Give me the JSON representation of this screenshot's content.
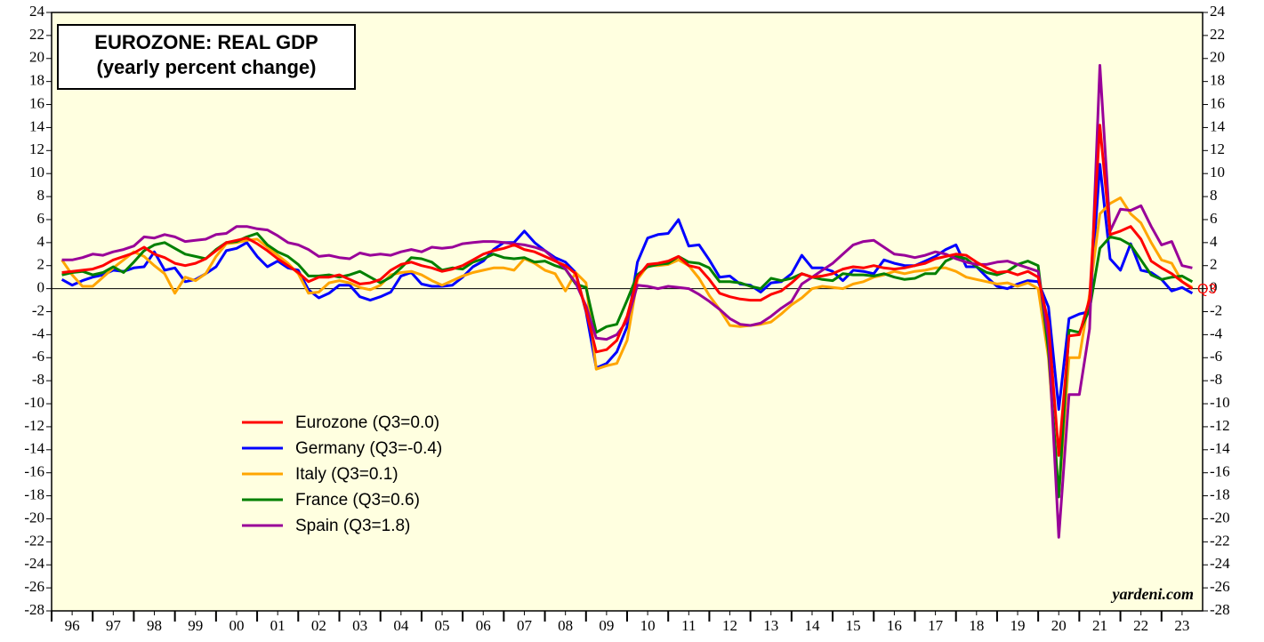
{
  "chart_data": {
    "type": "line",
    "title": "EUROZONE: REAL GDP",
    "subtitle": "(yearly percent change)",
    "annotations": [
      "Q3",
      "yardeni.com"
    ],
    "xlim": [
      1996,
      2024
    ],
    "xticks": [
      {
        "value": 1996.5,
        "label": "96"
      },
      {
        "value": 1997.5,
        "label": "97"
      },
      {
        "value": 1998.5,
        "label": "98"
      },
      {
        "value": 1999.5,
        "label": "99"
      },
      {
        "value": 2000.5,
        "label": "00"
      },
      {
        "value": 2001.5,
        "label": "01"
      },
      {
        "value": 2002.5,
        "label": "02"
      },
      {
        "value": 2003.5,
        "label": "03"
      },
      {
        "value": 2004.5,
        "label": "04"
      },
      {
        "value": 2005.5,
        "label": "05"
      },
      {
        "value": 2006.5,
        "label": "06"
      },
      {
        "value": 2007.5,
        "label": "07"
      },
      {
        "value": 2008.5,
        "label": "08"
      },
      {
        "value": 2009.5,
        "label": "09"
      },
      {
        "value": 2010.5,
        "label": "10"
      },
      {
        "value": 2011.5,
        "label": "11"
      },
      {
        "value": 2012.5,
        "label": "12"
      },
      {
        "value": 2013.5,
        "label": "13"
      },
      {
        "value": 2014.5,
        "label": "14"
      },
      {
        "value": 2015.5,
        "label": "15"
      },
      {
        "value": 2016.5,
        "label": "16"
      },
      {
        "value": 2017.5,
        "label": "17"
      },
      {
        "value": 2018.5,
        "label": "18"
      },
      {
        "value": 2019.5,
        "label": "19"
      },
      {
        "value": 2020.5,
        "label": "20"
      },
      {
        "value": 2021.5,
        "label": "21"
      },
      {
        "value": 2022.5,
        "label": "22"
      },
      {
        "value": 2023.5,
        "label": "23"
      }
    ],
    "ylim": [
      -28,
      24
    ],
    "yticks": [
      -28,
      -26,
      -24,
      -22,
      -20,
      -18,
      -16,
      -14,
      -12,
      -10,
      -8,
      -6,
      -4,
      -2,
      0,
      2,
      4,
      6,
      8,
      10,
      12,
      14,
      16,
      18,
      20,
      22,
      24
    ],
    "x": [
      1996.25,
      1996.5,
      1996.75,
      1997,
      1997.25,
      1997.5,
      1997.75,
      1998,
      1998.25,
      1998.5,
      1998.75,
      1999,
      1999.25,
      1999.5,
      1999.75,
      2000,
      2000.25,
      2000.5,
      2000.75,
      2001,
      2001.25,
      2001.5,
      2001.75,
      2002,
      2002.25,
      2002.5,
      2002.75,
      2003,
      2003.25,
      2003.5,
      2003.75,
      2004,
      2004.25,
      2004.5,
      2004.75,
      2005,
      2005.25,
      2005.5,
      2005.75,
      2006,
      2006.25,
      2006.5,
      2006.75,
      2007,
      2007.25,
      2007.5,
      2007.75,
      2008,
      2008.25,
      2008.5,
      2008.75,
      2009,
      2009.25,
      2009.5,
      2009.75,
      2010,
      2010.25,
      2010.5,
      2010.75,
      2011,
      2011.25,
      2011.5,
      2011.75,
      2012,
      2012.25,
      2012.5,
      2012.75,
      2013,
      2013.25,
      2013.5,
      2013.75,
      2014,
      2014.25,
      2014.5,
      2014.75,
      2015,
      2015.25,
      2015.5,
      2015.75,
      2016,
      2016.25,
      2016.5,
      2016.75,
      2017,
      2017.25,
      2017.5,
      2017.75,
      2018,
      2018.25,
      2018.5,
      2018.75,
      2019,
      2019.25,
      2019.5,
      2019.75,
      2020,
      2020.25,
      2020.5,
      2020.75,
      2021,
      2021.25,
      2021.5,
      2021.75,
      2022,
      2022.25,
      2022.5,
      2022.75,
      2023,
      2023.25,
      2023.5,
      2023.75
    ],
    "series": [
      {
        "name": "Eurozone (Q3=0.0)",
        "color": "#ff0000",
        "values": [
          1.4,
          1.5,
          1.6,
          1.7,
          2.0,
          2.5,
          2.8,
          3.1,
          3.6,
          3.0,
          2.7,
          2.2,
          2.0,
          2.2,
          2.6,
          3.3,
          4.0,
          4.2,
          4.4,
          3.9,
          3.3,
          2.6,
          2.0,
          1.4,
          0.6,
          1.0,
          1.0,
          1.2,
          0.8,
          0.4,
          0.5,
          0.8,
          1.6,
          2.1,
          2.3,
          2.0,
          1.8,
          1.5,
          1.7,
          2.0,
          2.5,
          3.0,
          3.3,
          3.5,
          3.8,
          3.4,
          3.2,
          2.8,
          2.4,
          2.0,
          1.3,
          -1.9,
          -5.5,
          -5.3,
          -4.5,
          -2.4,
          1.0,
          2.1,
          2.2,
          2.4,
          2.8,
          2.0,
          1.8,
          0.8,
          -0.4,
          -0.7,
          -0.9,
          -1.0,
          -1.0,
          -0.5,
          -0.2,
          0.5,
          1.3,
          1.0,
          1.1,
          1.3,
          1.7,
          1.9,
          1.8,
          2.0,
          1.8,
          1.7,
          1.8,
          2.0,
          2.2,
          2.6,
          2.8,
          3.0,
          2.9,
          2.3,
          1.8,
          1.4,
          1.5,
          1.2,
          1.5,
          1.0,
          -3.0,
          -14.5,
          -4.1,
          -4.0,
          -0.9,
          14.2,
          4.7,
          5.0,
          5.4,
          4.3,
          2.4,
          1.8,
          1.3,
          0.6,
          0.0
        ]
      },
      {
        "name": "Germany (Q3=-0.4)",
        "color": "#0000ff",
        "values": [
          0.8,
          0.3,
          0.7,
          1.0,
          1.2,
          1.6,
          1.5,
          1.8,
          1.9,
          3.2,
          1.6,
          1.8,
          0.6,
          0.8,
          1.3,
          1.9,
          3.3,
          3.5,
          4.0,
          2.8,
          1.9,
          2.4,
          1.8,
          1.6,
          -0.1,
          -0.8,
          -0.4,
          0.3,
          0.3,
          -0.7,
          -1.0,
          -0.7,
          -0.3,
          1.1,
          1.4,
          0.4,
          0.2,
          0.2,
          0.3,
          1.0,
          1.9,
          2.4,
          3.4,
          4.0,
          4.0,
          5.0,
          4.0,
          3.3,
          2.7,
          2.3,
          1.4,
          -2.0,
          -6.9,
          -6.5,
          -5.5,
          -3.3,
          2.3,
          4.4,
          4.7,
          4.8,
          6.0,
          3.7,
          3.8,
          2.5,
          1.0,
          1.1,
          0.4,
          0.3,
          -0.3,
          0.5,
          0.6,
          1.3,
          2.9,
          1.8,
          1.8,
          1.5,
          0.7,
          1.6,
          1.5,
          1.3,
          2.5,
          2.2,
          2.0,
          2.0,
          2.4,
          2.8,
          3.4,
          3.8,
          1.9,
          1.9,
          1.0,
          0.2,
          0.0,
          0.4,
          0.7,
          0.6,
          -1.6,
          -10.5,
          -2.6,
          -2.2,
          -2.0,
          10.8,
          2.6,
          1.6,
          3.9,
          1.6,
          1.4,
          0.8,
          -0.2,
          0.1,
          -0.4
        ]
      },
      {
        "name": "Italy (Q3=0.1)",
        "color": "#ffa500",
        "values": [
          2.5,
          1.2,
          0.2,
          0.2,
          1.0,
          1.8,
          2.5,
          3.2,
          2.8,
          2.0,
          1.3,
          -0.4,
          1.0,
          0.7,
          1.3,
          2.8,
          3.9,
          4.0,
          4.2,
          4.3,
          3.6,
          2.9,
          2.2,
          1.3,
          -0.4,
          -0.3,
          0.5,
          0.7,
          0.5,
          0.1,
          -0.1,
          0.3,
          1.2,
          1.4,
          1.5,
          1.2,
          0.7,
          0.3,
          0.7,
          1.1,
          1.4,
          1.6,
          1.8,
          1.8,
          1.6,
          2.6,
          2.2,
          1.6,
          1.3,
          -0.2,
          1.4,
          0.5,
          -7.0,
          -6.7,
          -6.5,
          -4.5,
          0.8,
          2.0,
          2.0,
          2.1,
          2.5,
          2.0,
          0.9,
          -0.6,
          -1.8,
          -3.2,
          -3.3,
          -3.2,
          -3.1,
          -2.9,
          -2.2,
          -1.4,
          -0.8,
          0.0,
          0.2,
          0.1,
          0.0,
          0.4,
          0.6,
          1.0,
          1.2,
          1.5,
          1.3,
          1.5,
          1.6,
          1.8,
          1.8,
          1.5,
          1.0,
          0.8,
          0.6,
          0.4,
          0.5,
          0.2,
          0.5,
          0.0,
          -6.0,
          -18.0,
          -6.0,
          -6.0,
          -0.5,
          6.5,
          7.4,
          7.9,
          6.5,
          5.7,
          4.0,
          2.5,
          2.2,
          0.6,
          0.1
        ]
      },
      {
        "name": "France (Q3=0.6)",
        "color": "#008000",
        "values": [
          1.2,
          1.4,
          1.5,
          1.2,
          1.4,
          1.9,
          1.4,
          2.3,
          3.3,
          3.8,
          4.0,
          3.5,
          3.0,
          2.8,
          2.6,
          3.4,
          4.0,
          4.1,
          4.5,
          4.8,
          3.8,
          3.2,
          2.8,
          2.1,
          1.1,
          1.1,
          1.2,
          1.0,
          1.2,
          1.5,
          1.0,
          0.5,
          1.0,
          1.8,
          2.7,
          2.6,
          2.3,
          1.6,
          1.8,
          1.7,
          2.3,
          2.6,
          3.0,
          2.7,
          2.6,
          2.7,
          2.3,
          2.4,
          2.0,
          1.7,
          0.4,
          0.1,
          -3.8,
          -3.3,
          -3.1,
          -1.0,
          1.2,
          1.9,
          2.1,
          2.2,
          2.8,
          2.3,
          2.2,
          1.8,
          0.6,
          0.6,
          0.5,
          0.2,
          0.0,
          0.9,
          0.7,
          0.9,
          1.3,
          1.0,
          0.8,
          0.7,
          1.3,
          1.2,
          1.2,
          1.1,
          1.3,
          1.0,
          0.8,
          0.9,
          1.3,
          1.3,
          2.4,
          2.8,
          2.6,
          1.9,
          1.4,
          1.2,
          1.5,
          2.1,
          2.4,
          2.0,
          -5.4,
          -18.1,
          -3.6,
          -3.8,
          -1.8,
          3.5,
          4.5,
          4.3,
          3.8,
          2.5,
          1.2,
          0.8,
          1.0,
          1.1,
          0.6
        ]
      },
      {
        "name": "Spain (Q3=1.8)",
        "color": "#990099",
        "values": [
          2.5,
          2.5,
          2.7,
          3.0,
          2.9,
          3.2,
          3.4,
          3.7,
          4.5,
          4.4,
          4.7,
          4.5,
          4.1,
          4.2,
          4.3,
          4.7,
          4.8,
          5.4,
          5.4,
          5.2,
          5.1,
          4.6,
          4.0,
          3.8,
          3.4,
          2.8,
          2.9,
          2.7,
          2.6,
          3.1,
          2.9,
          3.0,
          2.9,
          3.2,
          3.4,
          3.2,
          3.6,
          3.5,
          3.6,
          3.9,
          4.0,
          4.1,
          4.1,
          4.0,
          3.9,
          3.8,
          3.6,
          3.3,
          2.5,
          1.7,
          0.5,
          -1.5,
          -4.3,
          -4.4,
          -4.0,
          -2.8,
          0.3,
          0.2,
          0.0,
          0.2,
          0.1,
          0.0,
          -0.5,
          -1.1,
          -1.8,
          -2.6,
          -3.1,
          -3.2,
          -3.0,
          -2.4,
          -1.7,
          -1.1,
          0.4,
          1.0,
          1.6,
          2.2,
          3.0,
          3.8,
          4.1,
          4.2,
          3.6,
          3.0,
          2.9,
          2.7,
          2.9,
          3.2,
          3.0,
          2.6,
          2.3,
          2.1,
          2.1,
          2.3,
          2.4,
          2.1,
          1.8,
          1.5,
          -4.3,
          -21.6,
          -9.2,
          -9.2,
          -3.5,
          19.4,
          5.0,
          6.9,
          6.8,
          7.2,
          5.4,
          3.8,
          4.1,
          2.0,
          1.8
        ]
      }
    ]
  }
}
